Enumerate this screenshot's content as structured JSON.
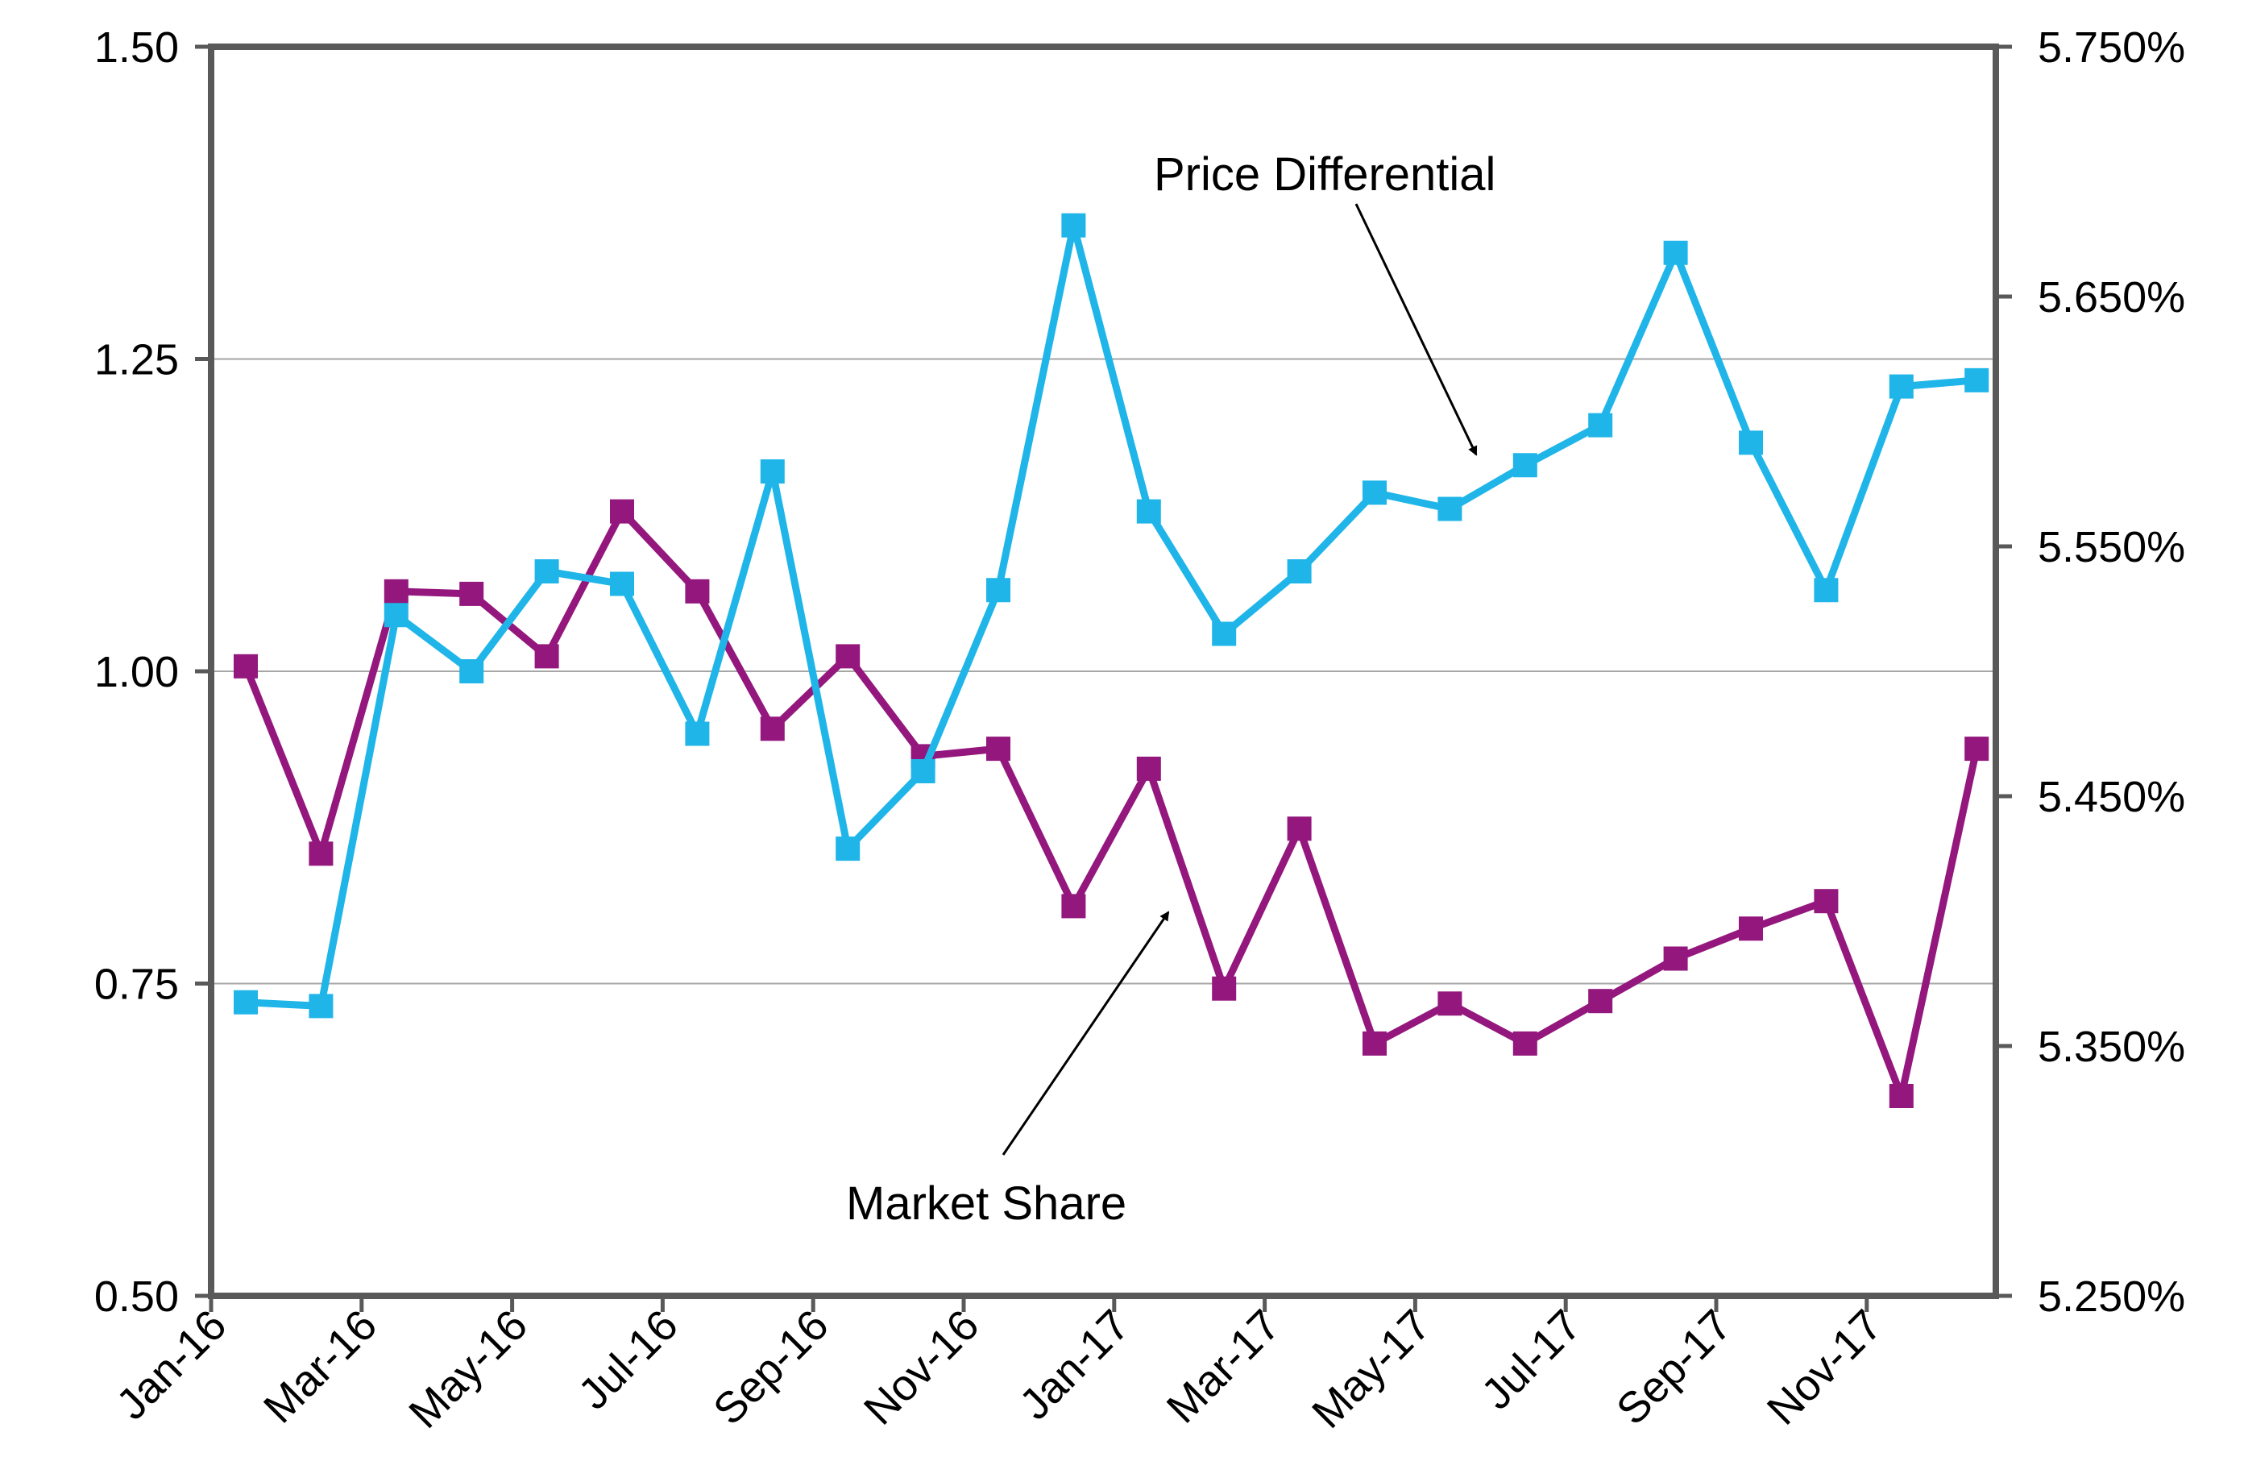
{
  "chart_data": {
    "type": "line",
    "title": "",
    "xlabel": "",
    "ylabel": "",
    "x_tick_labels": [
      "Jan-16",
      "Mar-16",
      "May-16",
      "Jul-16",
      "Sep-16",
      "Nov-16",
      "Jan-17",
      "Mar-17",
      "May-17",
      "Jul-17",
      "Sep-17",
      "Nov-17"
    ],
    "x": [
      "Jan-16",
      "Feb-16",
      "Mar-16",
      "Apr-16",
      "May-16",
      "Jun-16",
      "Jul-16",
      "Aug-16",
      "Sep-16",
      "Oct-16",
      "Nov-16",
      "Dec-16",
      "Jan-17",
      "Feb-17",
      "Mar-17",
      "Apr-17",
      "May-17",
      "Jun-17",
      "Jul-17",
      "Aug-17",
      "Sep-17",
      "Oct-17",
      "Nov-17",
      "Dec-17"
    ],
    "y_left": {
      "lim": [
        0.5,
        1.5
      ],
      "ticks": [
        0.5,
        0.75,
        1.0,
        1.25,
        1.5
      ],
      "tick_labels": [
        "0.50",
        "0.75",
        "1.00",
        "1.25",
        "1.50"
      ]
    },
    "y_right": {
      "lim": [
        5.25,
        5.75
      ],
      "ticks": [
        5.25,
        5.35,
        5.45,
        5.55,
        5.65,
        5.75
      ],
      "tick_labels": [
        "5.250%",
        "5.350%",
        "5.450%",
        "5.550%",
        "5.650%",
        "5.750%"
      ]
    },
    "grid": true,
    "series": [
      {
        "name": "Price Differential",
        "axis": "left",
        "color": "#1FB5E8",
        "values": [
          0.735,
          0.732,
          1.045,
          1.0,
          1.08,
          1.07,
          0.95,
          1.16,
          0.858,
          0.92,
          1.065,
          1.357,
          1.128,
          1.03,
          1.08,
          1.143,
          1.13,
          1.165,
          1.197,
          1.335,
          1.183,
          1.065,
          1.228,
          1.233
        ]
      },
      {
        "name": "Market Share",
        "axis": "right",
        "color": "#93177D",
        "values": [
          5.502,
          5.427,
          5.532,
          5.531,
          5.506,
          5.564,
          5.532,
          5.477,
          5.506,
          5.466,
          5.469,
          5.406,
          5.461,
          5.373,
          5.437,
          5.351,
          5.367,
          5.351,
          5.368,
          5.385,
          5.397,
          5.408,
          5.33,
          5.469
        ]
      }
    ],
    "annotations": [
      {
        "text": "Price Differential",
        "series": "Price Differential"
      },
      {
        "text": "Market Share",
        "series": "Market Share"
      }
    ]
  },
  "colors": {
    "axis": "#595959",
    "grid": "#A6A6A6",
    "arrow": "#000000"
  }
}
